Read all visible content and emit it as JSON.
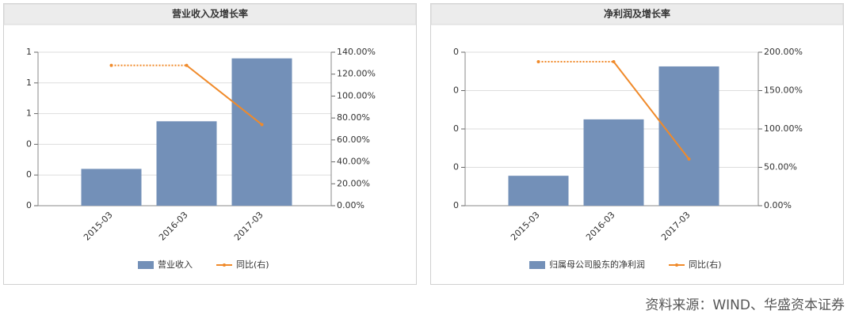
{
  "chart_data": [
    {
      "type": "bar-line",
      "title": "营业收入及增长率",
      "categories": [
        "2015-03",
        "2016-03",
        "2017-03"
      ],
      "series": [
        {
          "name": "营业收入",
          "type": "bar",
          "color": "#7390b8",
          "values": [
            0.24,
            0.55,
            0.96
          ]
        },
        {
          "name": "同比(右)",
          "type": "line",
          "axis": "y2",
          "color": "#f08a2a",
          "values": [
            128,
            128,
            74
          ]
        }
      ],
      "ylim": [
        0,
        1
      ],
      "yticks": [
        {
          "value": 0,
          "label": "0"
        },
        {
          "value": 0.2,
          "label": "0"
        },
        {
          "value": 0.4,
          "label": "0"
        },
        {
          "value": 0.6,
          "label": "1"
        },
        {
          "value": 0.8,
          "label": "1"
        },
        {
          "value": 1,
          "label": "1"
        }
      ],
      "y2lim": [
        0,
        140
      ],
      "y2ticks": [
        {
          "value": 0,
          "label": "0.00%"
        },
        {
          "value": 20,
          "label": "20.00%"
        },
        {
          "value": 40,
          "label": "40.00%"
        },
        {
          "value": 60,
          "label": "60.00%"
        },
        {
          "value": 80,
          "label": "80.00%"
        },
        {
          "value": 100,
          "label": "100.00%"
        },
        {
          "value": 120,
          "label": "120.00%"
        },
        {
          "value": 140,
          "label": "140.00%"
        }
      ],
      "grid": true
    },
    {
      "type": "bar-line",
      "title": "净利润及增长率",
      "categories": [
        "2015-03",
        "2016-03",
        "2017-03"
      ],
      "series": [
        {
          "name": "归属母公司股东的净利润",
          "type": "bar",
          "color": "#7390b8",
          "values": [
            0.078,
            0.225,
            0.363
          ]
        },
        {
          "name": "同比(右)",
          "type": "line",
          "axis": "y2",
          "color": "#f08a2a",
          "values": [
            187.6,
            187.6,
            60.8
          ]
        }
      ],
      "ylim": [
        0,
        0.4
      ],
      "yticks": [
        {
          "value": 0,
          "label": "0"
        },
        {
          "value": 0.1,
          "label": "0"
        },
        {
          "value": 0.2,
          "label": "0"
        },
        {
          "value": 0.3,
          "label": "0"
        },
        {
          "value": 0.4,
          "label": "0"
        }
      ],
      "y2lim": [
        0,
        200
      ],
      "y2ticks": [
        {
          "value": 0,
          "label": "0.00%"
        },
        {
          "value": 50,
          "label": "50.00%"
        },
        {
          "value": 100,
          "label": "100.00%"
        },
        {
          "value": 150,
          "label": "150.00%"
        },
        {
          "value": 200,
          "label": "200.00%"
        }
      ],
      "grid": true
    }
  ],
  "source": "资料来源：WIND、华盛资本证券"
}
